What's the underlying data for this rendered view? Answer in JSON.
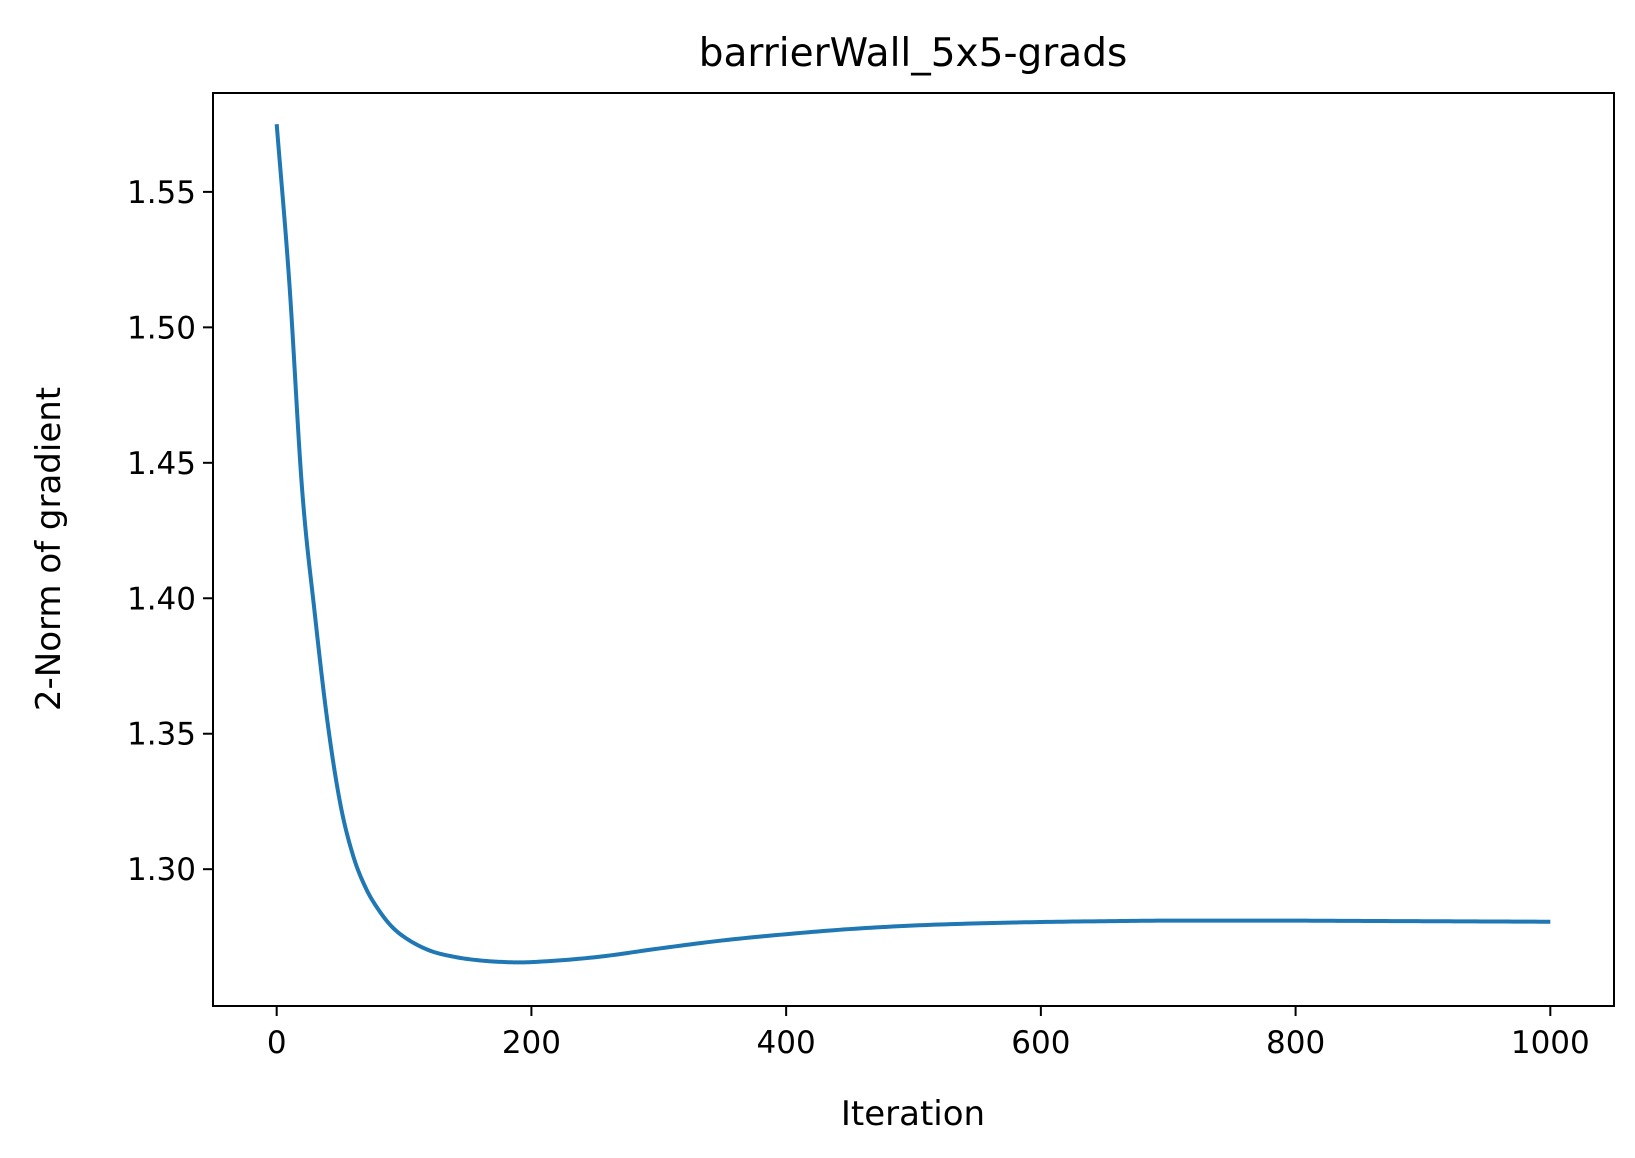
{
  "chart_data": {
    "type": "line",
    "title": "barrierWall_5x5-grads",
    "xlabel": "Iteration",
    "ylabel": "2-Norm of gradient",
    "xlim": [
      -50,
      1050
    ],
    "ylim": [
      1.2495,
      1.5865
    ],
    "xticks": [
      0,
      200,
      400,
      600,
      800,
      1000
    ],
    "xtick_labels": [
      "0",
      "200",
      "400",
      "600",
      "800",
      "1000"
    ],
    "yticks": [
      1.3,
      1.35,
      1.4,
      1.45,
      1.5,
      1.55
    ],
    "ytick_labels": [
      "1.30",
      "1.35",
      "1.40",
      "1.45",
      "1.50",
      "1.55"
    ],
    "grid": false,
    "series": [
      {
        "color": "#1f77b4",
        "x": [
          0,
          10,
          20,
          30,
          40,
          50,
          60,
          70,
          80,
          90,
          100,
          120,
          140,
          160,
          180,
          190,
          200,
          250,
          300,
          350,
          400,
          450,
          500,
          550,
          600,
          650,
          700,
          750,
          800,
          850,
          900,
          950,
          1000
        ],
        "y": [
          1.575,
          1.516,
          1.44,
          1.394,
          1.354,
          1.324,
          1.305,
          1.293,
          1.285,
          1.279,
          1.275,
          1.27,
          1.2676,
          1.2663,
          1.2657,
          1.2656,
          1.2657,
          1.2675,
          1.2707,
          1.2737,
          1.276,
          1.2779,
          1.2792,
          1.28,
          1.2805,
          1.2808,
          1.281,
          1.281,
          1.281,
          1.2809,
          1.2808,
          1.2807,
          1.2806
        ]
      }
    ]
  }
}
